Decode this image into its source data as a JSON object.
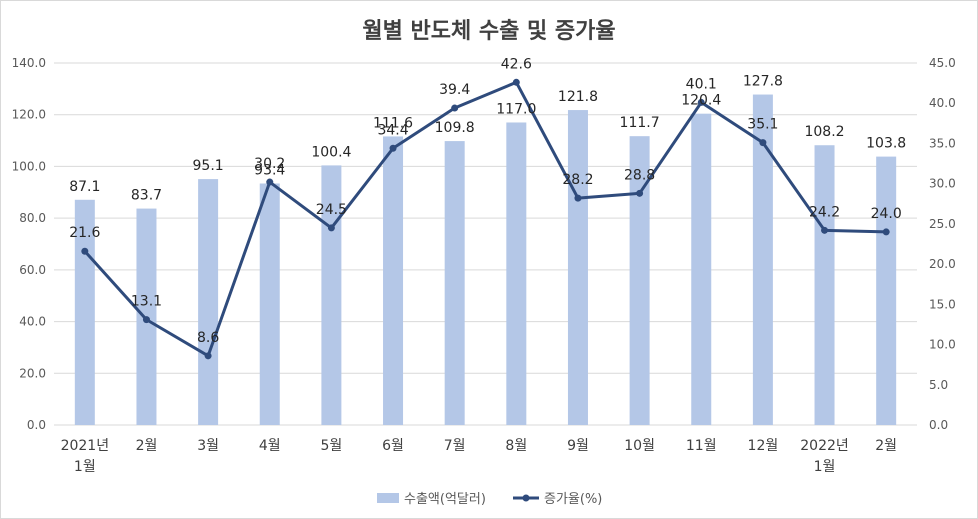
{
  "chart_data": {
    "type": "bar",
    "title": "월별 반도체 수출 및 증가율",
    "categories": [
      [
        "2021년",
        "1월"
      ],
      [
        "2월"
      ],
      [
        "3월"
      ],
      [
        "4월"
      ],
      [
        "5월"
      ],
      [
        "6월"
      ],
      [
        "7월"
      ],
      [
        "8월"
      ],
      [
        "9월"
      ],
      [
        "10월"
      ],
      [
        "11월"
      ],
      [
        "12월"
      ],
      [
        "2022년",
        "1월"
      ],
      [
        "2월"
      ]
    ],
    "series": [
      {
        "name": "수출액(억달러)",
        "type": "bar",
        "axis": "left",
        "color": "#b4c7e7",
        "values": [
          87.1,
          83.7,
          95.1,
          93.4,
          100.4,
          111.6,
          109.8,
          117.0,
          121.8,
          111.7,
          120.4,
          127.8,
          108.2,
          103.8
        ],
        "labels": [
          "87.1",
          "83.7",
          "95.1",
          "93.4",
          "100.4",
          "111.6",
          "109.8",
          "117.0",
          "121.8",
          "111.7",
          "120.4",
          "127.8",
          "108.2",
          "103.8"
        ]
      },
      {
        "name": "증가율(%)",
        "type": "line",
        "axis": "right",
        "color": "#2f4b7c",
        "values": [
          21.6,
          13.1,
          8.6,
          30.2,
          24.5,
          34.4,
          39.4,
          42.6,
          28.2,
          28.8,
          40.1,
          35.1,
          24.2,
          24.0
        ],
        "labels": [
          "21.6",
          "13.1",
          "8.6",
          "30.2",
          "24.5",
          "34.4",
          "39.4",
          "42.6",
          "28.2",
          "28.8",
          "40.1",
          "35.1",
          "24.2",
          "24.0"
        ]
      }
    ],
    "ylim_left": [
      0,
      140
    ],
    "yticks_left": [
      "0.0",
      "20.0",
      "40.0",
      "60.0",
      "80.0",
      "100.0",
      "120.0",
      "140.0"
    ],
    "ylim_right": [
      0,
      45
    ],
    "yticks_right": [
      "0.0",
      "5.0",
      "10.0",
      "15.0",
      "20.0",
      "25.0",
      "30.0",
      "35.0",
      "40.0",
      "45.0"
    ],
    "grid": true,
    "legend_position": "bottom"
  }
}
